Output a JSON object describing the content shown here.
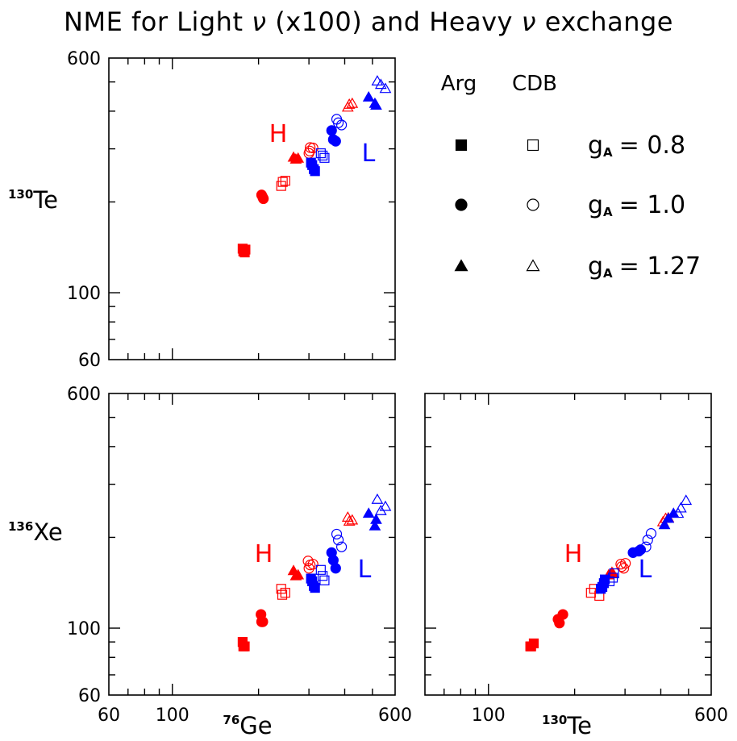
{
  "title_before": "NME for Light ",
  "title_nu1": "ν",
  "title_middle": " (x100) and Heavy ",
  "title_nu2": "ν",
  "title_after": " exchange",
  "colors": {
    "heavy": "#ff0000",
    "light": "#0000ff",
    "axes": "#000000"
  },
  "legend": {
    "header_arg": "Arg",
    "header_cdb": "CDB",
    "ga_symbol": "g",
    "ga_subscript": "A",
    "rows": [
      {
        "marker": "square",
        "value": "= 0.8"
      },
      {
        "marker": "circle",
        "value": "= 1.0"
      },
      {
        "marker": "triangle",
        "value": "= 1.27"
      }
    ]
  },
  "chart_data": [
    {
      "type": "scatter",
      "panel": "top-left",
      "xscale": "log",
      "yscale": "log",
      "xlim": [
        60,
        600
      ],
      "ylim": [
        60,
        600
      ],
      "xlabel": "",
      "ylabel": "Te",
      "ylabel_superscript": "130",
      "y_tick_labels": [
        "600",
        "100",
        "60"
      ],
      "x_tick_labels": [],
      "annotations": [
        "H",
        "L"
      ],
      "series": [
        {
          "group": "H",
          "marker": "square",
          "fill": "filled",
          "points": [
            [
              176,
              140
            ],
            [
              177,
              137
            ],
            [
              178,
              138
            ],
            [
              179,
              136
            ],
            [
              180,
              139
            ]
          ]
        },
        {
          "group": "H",
          "marker": "circle",
          "fill": "filled",
          "points": [
            [
              205,
              211
            ],
            [
              207,
              207
            ],
            [
              208,
              205
            ]
          ]
        },
        {
          "group": "H",
          "marker": "triangle",
          "fill": "filled",
          "points": [
            [
              265,
              281
            ],
            [
              270,
              277
            ],
            [
              275,
              279
            ]
          ]
        },
        {
          "group": "H",
          "marker": "square",
          "fill": "open",
          "points": [
            [
              240,
              226
            ],
            [
              243,
              233
            ],
            [
              248,
              235
            ]
          ]
        },
        {
          "group": "H",
          "marker": "circle",
          "fill": "open",
          "points": [
            [
              300,
              290
            ],
            [
              303,
              303
            ],
            [
              310,
              302
            ],
            [
              302,
              295
            ]
          ]
        },
        {
          "group": "H",
          "marker": "triangle",
          "fill": "open",
          "points": [
            [
              410,
              412
            ],
            [
              415,
              421
            ],
            [
              425,
              424
            ]
          ]
        },
        {
          "group": "L",
          "marker": "square",
          "fill": "filled",
          "points": [
            [
              305,
              270
            ],
            [
              308,
              265
            ],
            [
              312,
              257
            ],
            [
              315,
              253
            ]
          ]
        },
        {
          "group": "L",
          "marker": "circle",
          "fill": "filled",
          "points": [
            [
              360,
              345
            ],
            [
              365,
              322
            ],
            [
              372,
              318
            ]
          ]
        },
        {
          "group": "L",
          "marker": "triangle",
          "fill": "filled",
          "points": [
            [
              485,
              445
            ],
            [
              510,
              424
            ],
            [
              515,
              418
            ]
          ]
        },
        {
          "group": "L",
          "marker": "square",
          "fill": "open",
          "points": [
            [
              330,
              290
            ],
            [
              335,
              285
            ],
            [
              340,
              280
            ]
          ]
        },
        {
          "group": "L",
          "marker": "circle",
          "fill": "open",
          "points": [
            [
              375,
              376
            ],
            [
              380,
              366
            ],
            [
              390,
              360
            ]
          ]
        },
        {
          "group": "L",
          "marker": "triangle",
          "fill": "open",
          "points": [
            [
              520,
              503
            ],
            [
              535,
              490
            ],
            [
              555,
              475
            ]
          ]
        }
      ]
    },
    {
      "type": "scatter",
      "panel": "bottom-left",
      "xscale": "log",
      "yscale": "log",
      "xlim": [
        60,
        600
      ],
      "ylim": [
        60,
        600
      ],
      "xlabel": "Ge",
      "xlabel_superscript": "76",
      "ylabel": "Xe",
      "ylabel_superscript": "136",
      "x_tick_labels": [
        "60",
        "100",
        "600"
      ],
      "y_tick_labels": [
        "600",
        "100",
        "60"
      ],
      "annotations": [
        "H",
        "L"
      ],
      "series": [
        {
          "group": "H",
          "marker": "square",
          "fill": "filled",
          "points": [
            [
              176,
              90
            ],
            [
              177,
              87
            ],
            [
              179,
              87
            ]
          ]
        },
        {
          "group": "H",
          "marker": "circle",
          "fill": "filled",
          "points": [
            [
              204,
              111
            ],
            [
              205,
              105
            ],
            [
              207,
              105
            ]
          ]
        },
        {
          "group": "H",
          "marker": "triangle",
          "fill": "filled",
          "points": [
            [
              265,
              155
            ],
            [
              270,
              149
            ],
            [
              275,
              150
            ]
          ]
        },
        {
          "group": "H",
          "marker": "square",
          "fill": "open",
          "points": [
            [
              240,
              135
            ],
            [
              242,
              129
            ],
            [
              248,
              131
            ]
          ]
        },
        {
          "group": "H",
          "marker": "circle",
          "fill": "open",
          "points": [
            [
              300,
              158
            ],
            [
              303,
              162
            ],
            [
              310,
              163
            ],
            [
              298,
              167
            ]
          ]
        },
        {
          "group": "H",
          "marker": "triangle",
          "fill": "open",
          "points": [
            [
              410,
              233
            ],
            [
              415,
              226
            ],
            [
              425,
              228
            ]
          ]
        },
        {
          "group": "L",
          "marker": "square",
          "fill": "filled",
          "points": [
            [
              305,
              146
            ],
            [
              308,
              143
            ],
            [
              312,
              138
            ],
            [
              315,
              136
            ]
          ]
        },
        {
          "group": "L",
          "marker": "circle",
          "fill": "filled",
          "points": [
            [
              360,
              178
            ],
            [
              365,
              168
            ],
            [
              372,
              158
            ]
          ]
        },
        {
          "group": "L",
          "marker": "triangle",
          "fill": "filled",
          "points": [
            [
              485,
              240
            ],
            [
              510,
              218
            ],
            [
              515,
              229
            ]
          ]
        },
        {
          "group": "L",
          "marker": "square",
          "fill": "open",
          "points": [
            [
              330,
              156
            ],
            [
              335,
              149
            ],
            [
              340,
              144
            ]
          ]
        },
        {
          "group": "L",
          "marker": "circle",
          "fill": "open",
          "points": [
            [
              375,
              205
            ],
            [
              380,
              196
            ],
            [
              390,
              186
            ]
          ]
        },
        {
          "group": "L",
          "marker": "triangle",
          "fill": "open",
          "points": [
            [
              520,
              267
            ],
            [
              535,
              245
            ],
            [
              555,
              253
            ]
          ]
        }
      ]
    },
    {
      "type": "scatter",
      "panel": "bottom-right",
      "xscale": "log",
      "yscale": "log",
      "xlim": [
        60,
        600
      ],
      "ylim": [
        60,
        600
      ],
      "xlabel": "Te",
      "xlabel_superscript": "130",
      "ylabel": "",
      "x_tick_labels": [
        "100",
        "600"
      ],
      "y_tick_labels": [],
      "annotations": [
        "H",
        "L"
      ],
      "series": [
        {
          "group": "H",
          "marker": "square",
          "fill": "filled",
          "points": [
            [
              140,
              87
            ],
            [
              141,
              87
            ],
            [
              144,
              89
            ]
          ]
        },
        {
          "group": "H",
          "marker": "circle",
          "fill": "filled",
          "points": [
            [
              175,
              107
            ],
            [
              177,
              104
            ],
            [
              182,
              111
            ]
          ]
        },
        {
          "group": "H",
          "marker": "triangle",
          "fill": "filled",
          "points": [
            [
              263,
              150
            ],
            [
              270,
              153
            ],
            [
              272,
              152
            ]
          ]
        },
        {
          "group": "H",
          "marker": "square",
          "fill": "open",
          "points": [
            [
              228,
              131
            ],
            [
              234,
              135
            ],
            [
              244,
              128
            ]
          ]
        },
        {
          "group": "H",
          "marker": "circle",
          "fill": "open",
          "points": [
            [
              292,
              160
            ],
            [
              297,
              158
            ],
            [
              301,
              164
            ],
            [
              290,
              163
            ]
          ]
        },
        {
          "group": "H",
          "marker": "triangle",
          "fill": "open",
          "points": [
            [
              407,
              225
            ],
            [
              416,
              231
            ],
            [
              425,
              232
            ]
          ]
        },
        {
          "group": "L",
          "marker": "square",
          "fill": "filled",
          "points": [
            [
              247,
              135
            ],
            [
              250,
              137
            ],
            [
              253,
              141
            ],
            [
              255,
              145
            ]
          ]
        },
        {
          "group": "L",
          "marker": "circle",
          "fill": "filled",
          "points": [
            [
              320,
              178
            ],
            [
              335,
              180
            ],
            [
              340,
              182
            ]
          ]
        },
        {
          "group": "L",
          "marker": "triangle",
          "fill": "filled",
          "points": [
            [
              412,
              220
            ],
            [
              425,
              231
            ],
            [
              443,
              240
            ]
          ]
        },
        {
          "group": "L",
          "marker": "square",
          "fill": "open",
          "points": [
            [
              265,
              143
            ],
            [
              272,
              147
            ],
            [
              275,
              152
            ]
          ]
        },
        {
          "group": "L",
          "marker": "circle",
          "fill": "open",
          "points": [
            [
              355,
              186
            ],
            [
              360,
              196
            ],
            [
              370,
              206
            ]
          ]
        },
        {
          "group": "L",
          "marker": "triangle",
          "fill": "open",
          "points": [
            [
              460,
              240
            ],
            [
              470,
              250
            ],
            [
              490,
              265
            ]
          ]
        }
      ]
    }
  ]
}
